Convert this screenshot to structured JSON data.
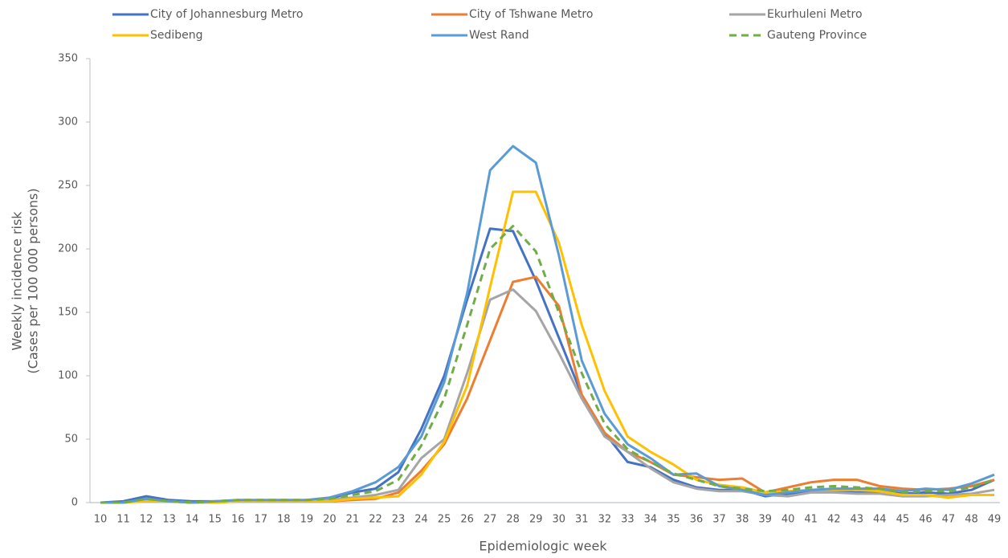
{
  "chart_data": {
    "type": "line",
    "x_label": "Epidemiologic week",
    "y_label": [
      "Weekly incidence  risk",
      "(Cases per 100 000 persons)"
    ],
    "categories": [
      "10",
      "11",
      "12",
      "13",
      "14",
      "15",
      "16",
      "17",
      "18",
      "19",
      "20",
      "21",
      "22",
      "23",
      "24",
      "25",
      "26",
      "27",
      "28",
      "29",
      "30",
      "31",
      "32",
      "33",
      "34",
      "35",
      "36",
      "37",
      "38",
      "39",
      "40",
      "41",
      "42",
      "43",
      "44",
      "45",
      "46",
      "47",
      "48",
      "49"
    ],
    "ylim": [
      0,
      350
    ],
    "yticks": [
      0,
      50,
      100,
      150,
      200,
      250,
      300,
      350
    ],
    "grid": false,
    "series": [
      {
        "name": "City of Johannesburg Metro",
        "color": "#4472c4",
        "dashed": false,
        "values": [
          0,
          1,
          5,
          2,
          1,
          1,
          1,
          1,
          1,
          1,
          3,
          8,
          11,
          24,
          58,
          100,
          160,
          216,
          214,
          175,
          130,
          85,
          55,
          32,
          28,
          18,
          12,
          10,
          10,
          5,
          7,
          9,
          9,
          8,
          9,
          7,
          8,
          7,
          10,
          18
        ]
      },
      {
        "name": "City of Tshwane Metro",
        "color": "#ed7d31",
        "dashed": false,
        "values": [
          0,
          0,
          2,
          1,
          0,
          0,
          1,
          1,
          1,
          1,
          1,
          2,
          3,
          8,
          25,
          46,
          82,
          128,
          174,
          178,
          155,
          85,
          55,
          40,
          32,
          22,
          20,
          18,
          19,
          8,
          12,
          16,
          18,
          18,
          13,
          11,
          10,
          11,
          13,
          18
        ]
      },
      {
        "name": "Ekurhuleni Metro",
        "color": "#a5a5a5",
        "dashed": false,
        "values": [
          0,
          0,
          2,
          1,
          0,
          0,
          1,
          1,
          1,
          1,
          2,
          4,
          6,
          10,
          35,
          50,
          102,
          160,
          168,
          151,
          118,
          82,
          52,
          40,
          27,
          16,
          11,
          9,
          9,
          6,
          5,
          8,
          8,
          7,
          7,
          5,
          5,
          6,
          7,
          10
        ]
      },
      {
        "name": "Sedibeng",
        "color": "#ffc000",
        "dashed": false,
        "values": [
          0,
          0,
          1,
          1,
          0,
          0,
          1,
          1,
          1,
          1,
          1,
          3,
          4,
          5,
          22,
          48,
          92,
          170,
          245,
          245,
          205,
          140,
          88,
          52,
          40,
          30,
          18,
          14,
          12,
          8,
          9,
          10,
          10,
          10,
          9,
          6,
          6,
          4,
          6,
          6
        ]
      },
      {
        "name": "West Rand",
        "color": "#5b9bd5",
        "dashed": false,
        "values": [
          0,
          0,
          3,
          1,
          0,
          1,
          2,
          2,
          2,
          2,
          4,
          9,
          16,
          28,
          52,
          95,
          165,
          262,
          281,
          268,
          195,
          112,
          70,
          46,
          35,
          22,
          23,
          13,
          10,
          6,
          8,
          10,
          11,
          11,
          11,
          9,
          11,
          10,
          15,
          22
        ]
      },
      {
        "name": "Gauteng Province",
        "color": "#70ad47",
        "dashed": true,
        "values": [
          0,
          0,
          3,
          1,
          0,
          1,
          2,
          2,
          2,
          2,
          3,
          6,
          9,
          18,
          45,
          82,
          140,
          200,
          218,
          198,
          150,
          102,
          62,
          42,
          32,
          23,
          18,
          13,
          11,
          9,
          10,
          12,
          13,
          12,
          11,
          8,
          9,
          9,
          12,
          18
        ]
      }
    ]
  }
}
